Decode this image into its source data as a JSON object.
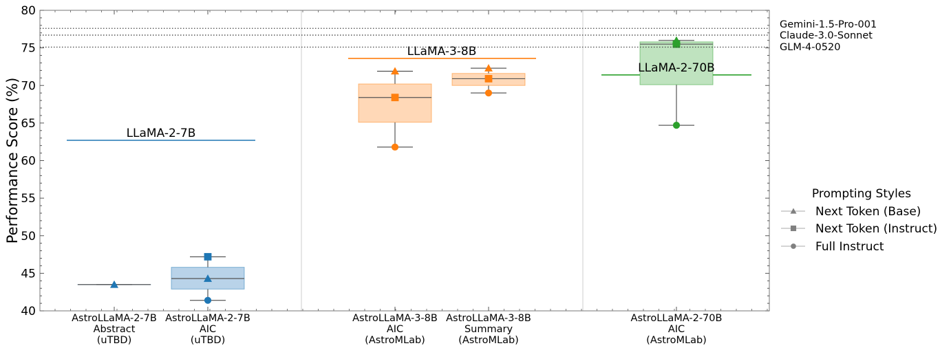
{
  "chart_data": {
    "type": "box",
    "title": "",
    "xlabel": "",
    "ylabel": "Performance Score (%)",
    "ylim": [
      40,
      80
    ],
    "yticks": [
      40,
      45,
      50,
      55,
      60,
      65,
      70,
      75,
      80
    ],
    "categories": [
      {
        "lines": [
          "AstroLLaMA-2-7B",
          "Abstract",
          "(uTBD)"
        ]
      },
      {
        "lines": [
          "AstroLLaMA-2-7B",
          "AIC",
          "(uTBD)"
        ]
      },
      {
        "lines": [
          "AstroLLaMA-3-8B",
          "AIC",
          "(AstroMLab)"
        ]
      },
      {
        "lines": [
          "AstroLLaMA-3-8B",
          "Summary",
          "(AstroMLab)"
        ]
      },
      {
        "lines": [
          "AstroLLaMA-2-70B",
          "AIC",
          "(AstroMLab)"
        ]
      }
    ],
    "groups": [
      {
        "label": "LLaMA-2-7B",
        "baseline": 62.7,
        "color": "#1f77b4",
        "fill": "#b9d3e9",
        "categories": [
          0,
          1
        ]
      },
      {
        "label": "LLaMA-3-8B",
        "baseline": 73.6,
        "color": "#ff7f0e",
        "fill": "#ffd8b7",
        "categories": [
          2,
          3
        ]
      },
      {
        "label": "LLaMA-2-70B",
        "baseline": 71.4,
        "color": "#2ca02c",
        "fill": "#bfe3bf",
        "categories": [
          4
        ]
      }
    ],
    "boxes": [
      {
        "category": 0,
        "min": 43.5,
        "q1": 43.5,
        "median": 43.5,
        "q3": 43.5,
        "max": 43.5
      },
      {
        "category": 1,
        "min": 41.4,
        "q1": 42.9,
        "median": 44.3,
        "q3": 45.8,
        "max": 47.2
      },
      {
        "category": 2,
        "min": 61.8,
        "q1": 65.1,
        "median": 68.4,
        "q3": 70.2,
        "max": 71.9
      },
      {
        "category": 3,
        "min": 69.0,
        "q1": 70.0,
        "median": 70.9,
        "q3": 71.6,
        "max": 72.3
      },
      {
        "category": 4,
        "min": 64.7,
        "q1": 70.1,
        "median": 75.5,
        "q3": 75.8,
        "max": 76.0
      }
    ],
    "series": [
      {
        "name": "Next Token (Base)",
        "marker": "triangle",
        "values": [
          43.5,
          44.3,
          71.9,
          72.3,
          76.0
        ]
      },
      {
        "name": "Next Token (Instruct)",
        "marker": "square",
        "values": [
          null,
          47.2,
          68.4,
          70.9,
          75.5
        ]
      },
      {
        "name": "Full Instruct",
        "marker": "circle",
        "values": [
          null,
          41.4,
          61.8,
          69.0,
          64.7
        ]
      }
    ],
    "reference_lines": [
      {
        "label": "Gemini-1.5-Pro-001",
        "value": 77.6
      },
      {
        "label": "Claude-3.0-Sonnet",
        "value": 76.7
      },
      {
        "label": "GLM-4-0520",
        "value": 75.1
      }
    ],
    "legend": {
      "title": "Prompting Styles",
      "position": "right",
      "marker_color": "#808080"
    },
    "grid": false
  }
}
